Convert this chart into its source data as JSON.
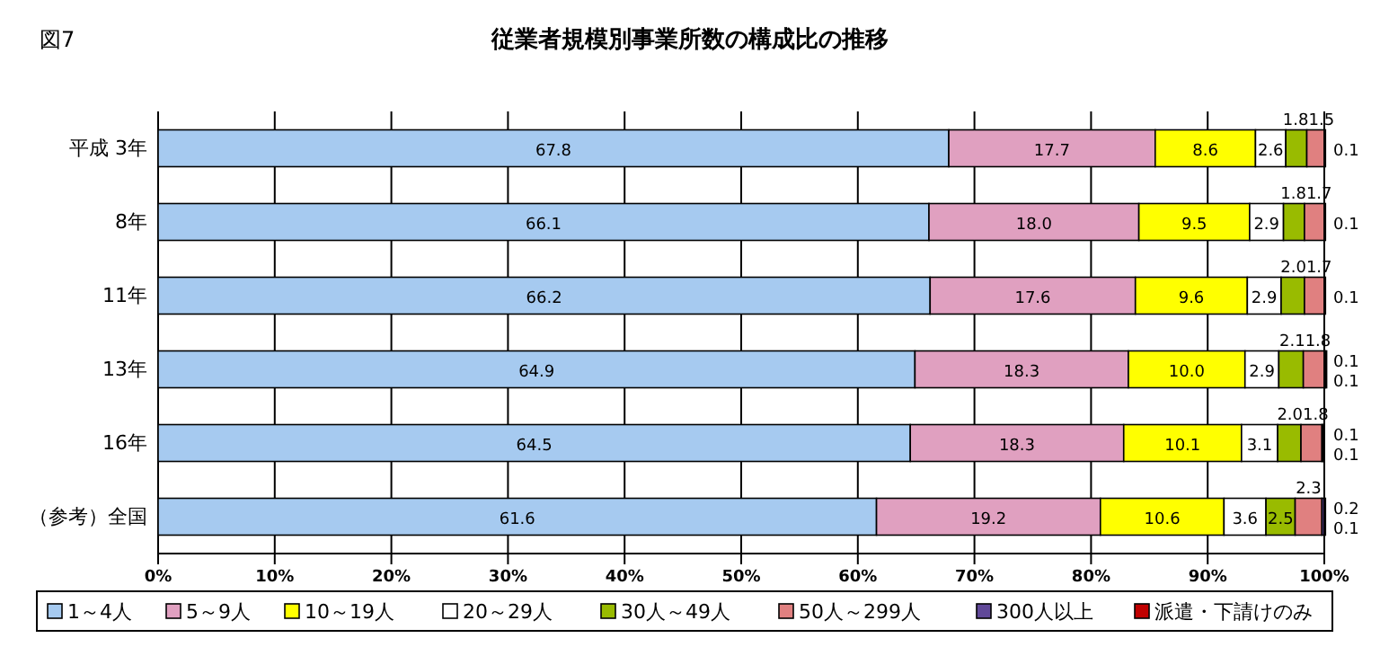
{
  "chart_data": {
    "type": "bar",
    "orientation": "horizontal",
    "stacked": true,
    "title": "従業者規模別事業所数の構成比の推移",
    "annotations": [
      "図7"
    ],
    "categories": [
      "平成  3年",
      "8年",
      "11年",
      "13年",
      "16年",
      "（参考）全国"
    ],
    "series": [
      {
        "name": "1～4人",
        "color": "#a6caf0",
        "values": [
          67.8,
          66.1,
          66.2,
          64.9,
          64.5,
          61.6
        ],
        "value_labels": [
          "67.8",
          "66.1",
          "66.2",
          "64.9",
          "64.5",
          "61.6"
        ]
      },
      {
        "name": "5～9人",
        "color": "#e0a0c0",
        "values": [
          17.7,
          18.0,
          17.6,
          18.3,
          18.3,
          19.2
        ],
        "value_labels": [
          "17.7",
          "18.0",
          "17.6",
          "18.3",
          "18.3",
          "19.2"
        ]
      },
      {
        "name": "10～19人",
        "color": "#ffff00",
        "values": [
          8.6,
          9.5,
          9.6,
          10.0,
          10.1,
          10.6
        ],
        "value_labels": [
          "8.6",
          "9.5",
          "9.6",
          "10.0",
          "10.1",
          "10.6"
        ]
      },
      {
        "name": "20～29人",
        "color": "#ffffff",
        "values": [
          2.6,
          2.9,
          2.9,
          2.9,
          3.1,
          3.6
        ],
        "value_labels": [
          "2.6",
          "2.9",
          "2.9",
          "2.9",
          "3.1",
          "3.6"
        ]
      },
      {
        "name": "30人～49人",
        "color": "#99bb00",
        "values": [
          1.8,
          1.8,
          2.0,
          2.1,
          2.0,
          2.5
        ],
        "value_labels": [
          "1.8",
          "1.8",
          "2.0",
          "2.1",
          "2.0",
          "2.5"
        ]
      },
      {
        "name": "50人～299人",
        "color": "#e08080",
        "values": [
          1.5,
          1.7,
          1.7,
          1.8,
          1.8,
          2.3
        ],
        "value_labels": [
          "1.5",
          "1.7",
          "1.7",
          "1.8",
          "1.8",
          "2.3"
        ]
      },
      {
        "name": "300人以上",
        "color": "#604898",
        "values": [
          0.1,
          0.1,
          0.1,
          0.1,
          0.1,
          0.2
        ],
        "value_labels": [
          "0.1",
          "0.1",
          "0.1",
          "0.1",
          "0.1",
          "0.2"
        ]
      },
      {
        "name": "派遣・下請けのみ",
        "color": "#c00000",
        "values": [
          null,
          null,
          null,
          0.1,
          0.1,
          0.1
        ],
        "value_labels": [
          null,
          null,
          null,
          "0.1",
          "0.1",
          "0.1"
        ]
      }
    ],
    "xlim": [
      0,
      100
    ],
    "xticks": [
      {
        "value": 0,
        "label": "0%"
      },
      {
        "value": 10,
        "label": "10%"
      },
      {
        "value": 20,
        "label": "20%"
      },
      {
        "value": 30,
        "label": "30%"
      },
      {
        "value": 40,
        "label": "40%"
      },
      {
        "value": 50,
        "label": "50%"
      },
      {
        "value": 60,
        "label": "60%"
      },
      {
        "value": 70,
        "label": "70%"
      },
      {
        "value": 80,
        "label": "80%"
      },
      {
        "value": 90,
        "label": "90%"
      },
      {
        "value": 100,
        "label": "100%"
      }
    ],
    "grid": "x",
    "legend": "bottom"
  }
}
